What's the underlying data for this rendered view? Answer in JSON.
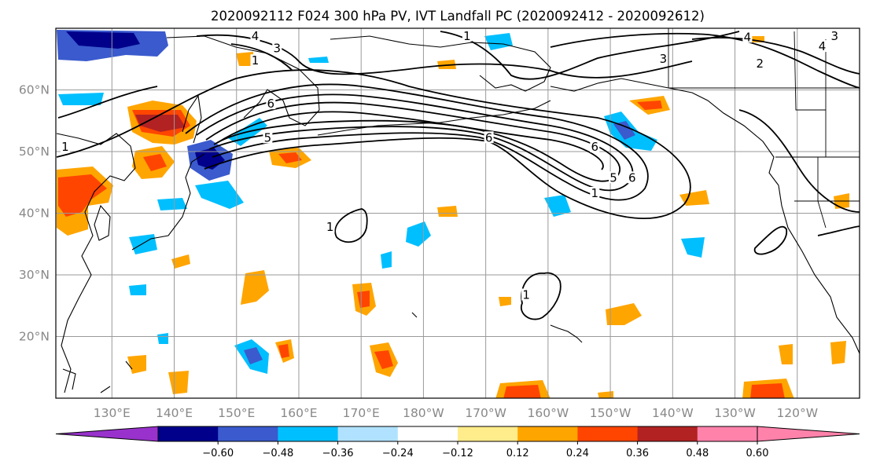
{
  "title": "2020092112 F024 300 hPa PV, IVT Landfall PC (2020092412 - 2020092612)",
  "map": {
    "lon_range": [
      121,
      250
    ],
    "lat_range": [
      10,
      70
    ],
    "lat_ticks": [
      {
        "value": 20,
        "label": "20°N"
      },
      {
        "value": 30,
        "label": "30°N"
      },
      {
        "value": 40,
        "label": "40°N"
      },
      {
        "value": 50,
        "label": "50°N"
      },
      {
        "value": 60,
        "label": "60°N"
      }
    ],
    "lon_ticks": [
      {
        "value": 130,
        "label": "130°E"
      },
      {
        "value": 140,
        "label": "140°E"
      },
      {
        "value": 150,
        "label": "150°E"
      },
      {
        "value": 160,
        "label": "160°E"
      },
      {
        "value": 170,
        "label": "170°E"
      },
      {
        "value": 180,
        "label": "180°W"
      },
      {
        "value": 190,
        "label": "170°W"
      },
      {
        "value": 200,
        "label": "160°W"
      },
      {
        "value": 210,
        "label": "150°W"
      },
      {
        "value": 220,
        "label": "140°W"
      },
      {
        "value": 230,
        "label": "130°W"
      },
      {
        "value": 240,
        "label": "120°W"
      }
    ],
    "grid": true
  },
  "colorbar": {
    "colors": [
      "#9932cc",
      "#00008b",
      "#3a5acd",
      "#00bfff",
      "#b0e2ff",
      "#ffffff",
      "#ffec8b",
      "#ffa500",
      "#ff4500",
      "#b22222",
      "#ff82ab",
      "#ff82ab"
    ],
    "ticks": [
      "−0.60",
      "−0.48",
      "−0.36",
      "−0.24",
      "−0.12",
      "0.12",
      "0.24",
      "0.36",
      "0.48",
      "0.60"
    ],
    "extend": "both"
  },
  "contour_labels": [
    {
      "text": "4",
      "lon": 153,
      "lat": 68.5
    },
    {
      "text": "3",
      "lon": 156.5,
      "lat": 66.5
    },
    {
      "text": "1",
      "lon": 153,
      "lat": 64.5
    },
    {
      "text": "1",
      "lon": 187,
      "lat": 68.5
    },
    {
      "text": "3",
      "lon": 218.5,
      "lat": 64.8
    },
    {
      "text": "4",
      "lon": 232,
      "lat": 68.3
    },
    {
      "text": "2",
      "lon": 234,
      "lat": 64
    },
    {
      "text": "3",
      "lon": 246,
      "lat": 68.5
    },
    {
      "text": "4",
      "lon": 244,
      "lat": 66.8
    },
    {
      "text": "6",
      "lon": 155.5,
      "lat": 57.5
    },
    {
      "text": "5",
      "lon": 155,
      "lat": 52
    },
    {
      "text": "6",
      "lon": 190.5,
      "lat": 52
    },
    {
      "text": "6",
      "lon": 207.5,
      "lat": 50.5
    },
    {
      "text": "5",
      "lon": 210.5,
      "lat": 45.5
    },
    {
      "text": "6",
      "lon": 213.5,
      "lat": 45.5
    },
    {
      "text": "1",
      "lon": 207.5,
      "lat": 43
    },
    {
      "text": "1",
      "lon": 165,
      "lat": 37.5
    },
    {
      "text": "1",
      "lon": 196.5,
      "lat": 26.5
    },
    {
      "text": "1",
      "lon": 122.5,
      "lat": 50.5
    }
  ],
  "icons": [
    "color-swatch",
    "contour-line",
    "coastline"
  ]
}
